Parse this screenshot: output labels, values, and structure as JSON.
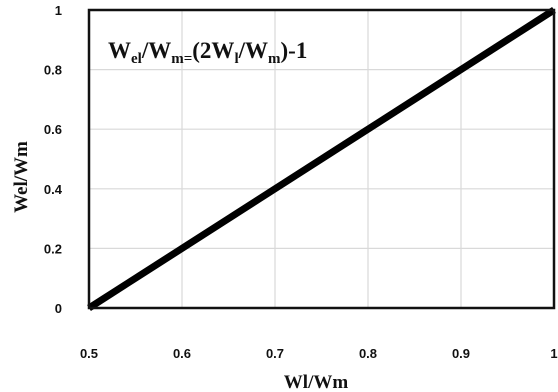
{
  "chart_data": {
    "type": "line",
    "xlabel": "Wl/Wm",
    "ylabel": "Wel/Wm",
    "xlim": [
      0.5,
      1
    ],
    "ylim": [
      0,
      1
    ],
    "x_ticks": [
      0.5,
      0.6,
      0.7,
      0.8,
      0.9,
      1
    ],
    "x_tick_labels": [
      "0.5",
      "0.6",
      "0.7",
      "0.8",
      "0.9",
      "1"
    ],
    "y_ticks": [
      0,
      0.2,
      0.4,
      0.6,
      0.8,
      1
    ],
    "y_tick_labels": [
      "0",
      "0.2",
      "0.4",
      "0.6",
      "0.8",
      "1"
    ],
    "grid": true,
    "series": [
      {
        "x": [
          0.5,
          1
        ],
        "y": [
          0,
          1
        ],
        "color": "#000000"
      }
    ],
    "annotation": {
      "parts": [
        "W",
        "el",
        "/W",
        "m=",
        "(2W",
        "l",
        "/W",
        "m",
        ")-1"
      ]
    }
  }
}
